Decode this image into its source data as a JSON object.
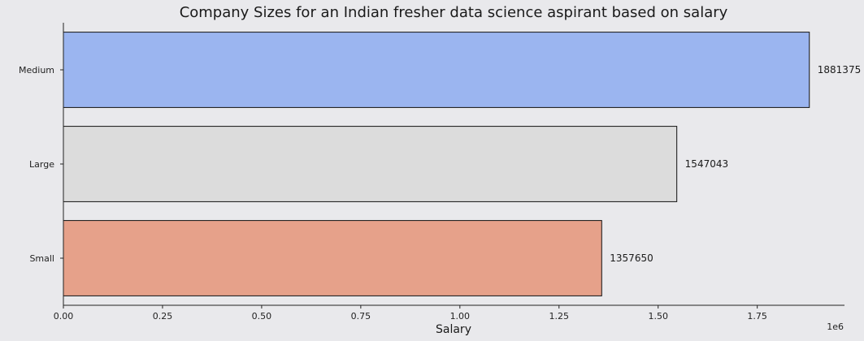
{
  "chart_data": {
    "type": "bar",
    "orientation": "horizontal",
    "title": "Company Sizes for an Indian fresher data science aspirant based on salary",
    "xlabel": "Salary",
    "ylabel": "",
    "x_offset_label": "1e6",
    "categories": [
      "Medium",
      "Large",
      "Small"
    ],
    "values": [
      1881375,
      1547043,
      1357650
    ],
    "value_labels": [
      "1881375",
      "1547043",
      "1357650"
    ],
    "colors": [
      "#9bb5f0",
      "#dcdcdc",
      "#e6a18a"
    ],
    "xlim": [
      0,
      1970000
    ],
    "xticks": [
      0,
      250000,
      500000,
      750000,
      1000000,
      1250000,
      1500000,
      1750000
    ],
    "xtick_labels": [
      "0.00",
      "0.25",
      "0.50",
      "0.75",
      "1.00",
      "1.25",
      "1.50",
      "1.75"
    ],
    "grid": false,
    "legend": "none"
  }
}
